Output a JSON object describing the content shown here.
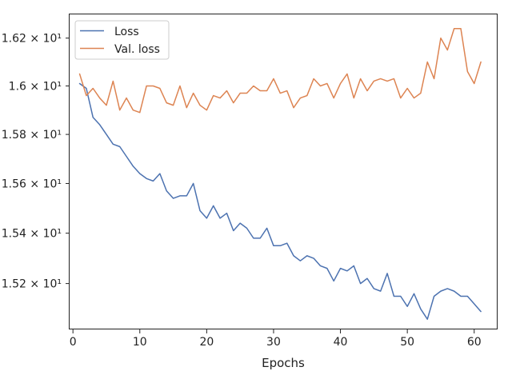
{
  "chart_data": {
    "type": "line",
    "title": "",
    "xlabel": "Epochs",
    "ylabel": "",
    "yscale": "log",
    "xlim": [
      -0.5,
      63.5
    ],
    "ylim": [
      15.02,
      16.3
    ],
    "grid": false,
    "legend_position": "top-left",
    "x_ticks": [
      0,
      10,
      20,
      30,
      40,
      50,
      60
    ],
    "x_tick_labels": [
      "0",
      "10",
      "20",
      "30",
      "40",
      "50",
      "60"
    ],
    "y_ticks": [
      15.2,
      15.4,
      15.6,
      15.8,
      16.0,
      16.2
    ],
    "y_tick_labels": [
      "1.52 × 10¹",
      "1.54 × 10¹",
      "1.56 × 10¹",
      "1.58 × 10¹",
      "1.6 × 10¹",
      "1.62 × 10¹"
    ],
    "x": [
      1,
      2,
      3,
      4,
      5,
      6,
      7,
      8,
      9,
      10,
      11,
      12,
      13,
      14,
      15,
      16,
      17,
      18,
      19,
      20,
      21,
      22,
      23,
      24,
      25,
      26,
      27,
      28,
      29,
      30,
      31,
      32,
      33,
      34,
      35,
      36,
      37,
      38,
      39,
      40,
      41,
      42,
      43,
      44,
      45,
      46,
      47,
      48,
      49,
      50,
      51,
      52,
      53,
      54,
      55,
      56,
      57,
      58,
      59,
      60,
      61
    ],
    "series": [
      {
        "name": "Loss",
        "color": "#4c72b0",
        "values": [
          16.01,
          15.99,
          15.87,
          15.84,
          15.8,
          15.76,
          15.75,
          15.71,
          15.67,
          15.64,
          15.62,
          15.61,
          15.64,
          15.57,
          15.54,
          15.55,
          15.55,
          15.6,
          15.49,
          15.46,
          15.51,
          15.46,
          15.48,
          15.41,
          15.44,
          15.42,
          15.38,
          15.38,
          15.42,
          15.35,
          15.35,
          15.36,
          15.31,
          15.29,
          15.31,
          15.3,
          15.27,
          15.26,
          15.21,
          15.26,
          15.25,
          15.27,
          15.2,
          15.22,
          15.18,
          15.17,
          15.24,
          15.15,
          15.15,
          15.11,
          15.16,
          15.1,
          15.06,
          15.15,
          15.17,
          15.18,
          15.17,
          15.15,
          15.15,
          15.12,
          15.09
        ]
      },
      {
        "name": "Val. loss",
        "color": "#dd8452",
        "values": [
          16.05,
          15.96,
          15.99,
          15.95,
          15.92,
          16.02,
          15.9,
          15.95,
          15.9,
          15.89,
          16.0,
          16.0,
          15.99,
          15.93,
          15.92,
          16.0,
          15.91,
          15.97,
          15.92,
          15.9,
          15.96,
          15.95,
          15.98,
          15.93,
          15.97,
          15.97,
          16.0,
          15.98,
          15.98,
          16.03,
          15.97,
          15.98,
          15.91,
          15.95,
          15.96,
          16.03,
          16.0,
          16.01,
          15.95,
          16.01,
          16.05,
          15.95,
          16.03,
          15.98,
          16.02,
          16.03,
          16.02,
          16.03,
          15.95,
          15.99,
          15.95,
          15.97,
          16.1,
          16.03,
          16.2,
          16.15,
          16.24,
          16.24,
          16.06,
          16.01,
          16.1
        ]
      }
    ]
  }
}
